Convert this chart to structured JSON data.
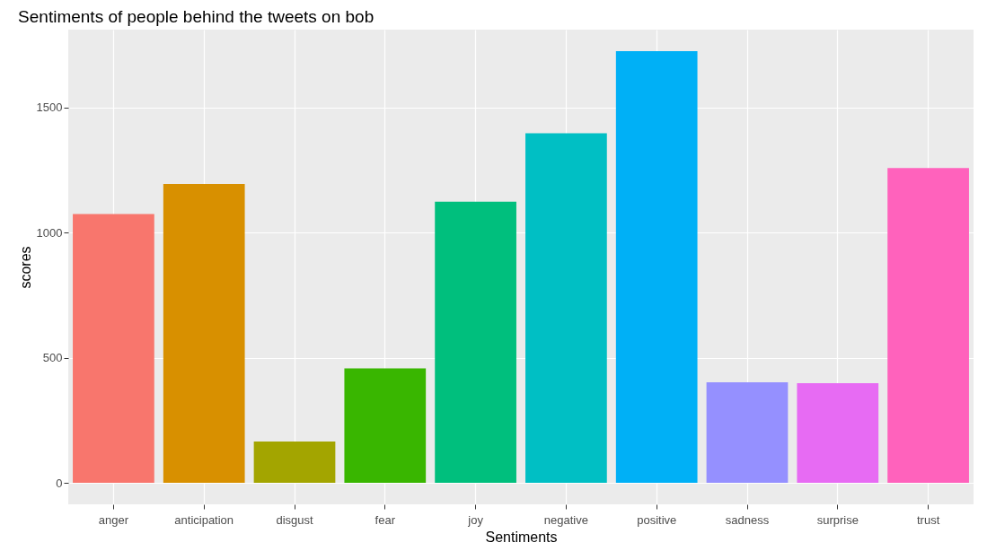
{
  "chart_data": {
    "type": "bar",
    "title": "Sentiments of people behind the tweets on bob",
    "xlabel": "Sentiments",
    "ylabel": "scores",
    "categories": [
      "anger",
      "anticipation",
      "disgust",
      "fear",
      "joy",
      "negative",
      "positive",
      "sadness",
      "surprise",
      "trust"
    ],
    "values": [
      1075,
      1195,
      165,
      458,
      1124,
      1398,
      1726,
      402,
      398,
      1259
    ],
    "colors": [
      "#f8766d",
      "#d89000",
      "#a3a500",
      "#39b600",
      "#00bf7d",
      "#00bfc4",
      "#00b0f6",
      "#9590ff",
      "#e76bf3",
      "#ff62bc"
    ],
    "ylim": [
      -86,
      1812
    ],
    "yticks": [
      0,
      500,
      1000,
      1500
    ],
    "grid": true,
    "legend": false
  }
}
